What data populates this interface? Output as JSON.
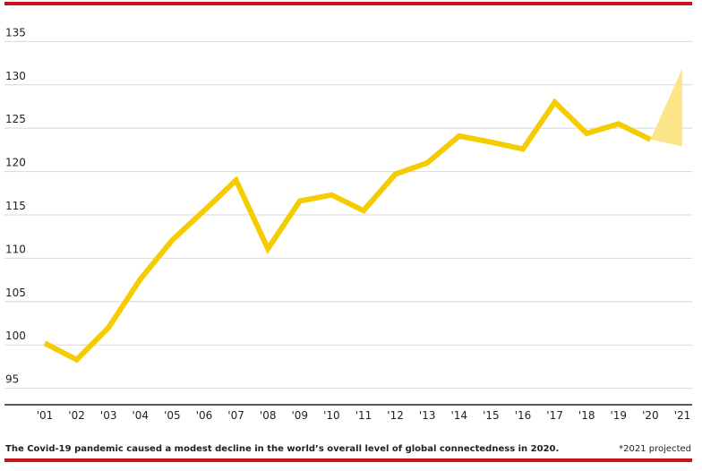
{
  "chart_data": {
    "type": "line",
    "categories": [
      "'01",
      "'02",
      "'03",
      "'04",
      "'05",
      "'06",
      "'07",
      "'08",
      "'09",
      "'10",
      "'11",
      "'12",
      "'13",
      "'14",
      "'15",
      "'16",
      "'17",
      "'18",
      "'19",
      "'20",
      "'21"
    ],
    "series": [
      {
        "color": "#f5cc00",
        "values": [
          100.2,
          98.3,
          102,
          107.6,
          112.1,
          115.5,
          119,
          111.1,
          116.6,
          117.3,
          115.5,
          119.7,
          121,
          124.1,
          123.4,
          122.6,
          128,
          124.4,
          125.5,
          123.7,
          null
        ]
      }
    ],
    "projection": {
      "low": 122.9,
      "high": 131.9,
      "color": "#fde58a"
    },
    "ylim": [
      93,
      137
    ],
    "yticks": [
      95,
      100,
      105,
      110,
      115,
      120,
      125,
      130,
      135
    ],
    "grid": true,
    "caption": "The Covid-19 pandemic caused a modest decline in the world’s overall level of global connectedness in 2020.",
    "note": "*2021 projected"
  }
}
